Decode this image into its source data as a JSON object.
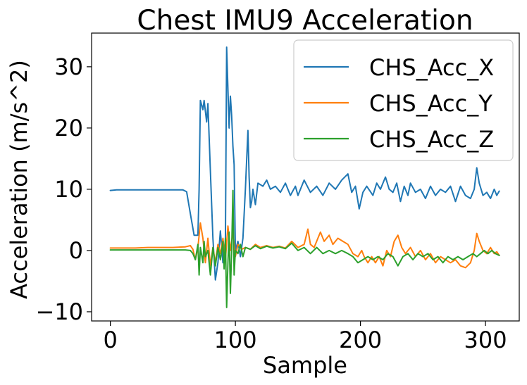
{
  "chart_data": {
    "type": "line",
    "title": "Chest IMU9 Acceleration",
    "xlabel": "Sample",
    "ylabel": "Acceleration (m/s^2)",
    "xlim": [
      -15,
      327
    ],
    "ylim": [
      -11.5,
      35.5
    ],
    "xticks": [
      0,
      100,
      200,
      300
    ],
    "yticks": [
      -10,
      0,
      10,
      20,
      30
    ],
    "xtick_labels": [
      "0",
      "100",
      "200",
      "300"
    ],
    "ytick_labels": [
      "−10",
      "0",
      "10",
      "20",
      "30"
    ],
    "legend_position": "top-right",
    "series": [
      {
        "name": "CHS_Acc_X",
        "color": "#1f77b4",
        "points": [
          [
            0,
            9.8
          ],
          [
            5,
            9.9
          ],
          [
            10,
            9.9
          ],
          [
            20,
            9.9
          ],
          [
            30,
            9.9
          ],
          [
            40,
            9.9
          ],
          [
            50,
            9.9
          ],
          [
            58,
            9.9
          ],
          [
            61,
            9.6
          ],
          [
            64,
            6.0
          ],
          [
            67,
            2.5
          ],
          [
            70,
            2.5
          ],
          [
            71,
            10.0
          ],
          [
            72,
            24.5
          ],
          [
            74,
            23.0
          ],
          [
            75,
            24.5
          ],
          [
            77,
            21.0
          ],
          [
            78,
            24.0
          ],
          [
            80,
            13.0
          ],
          [
            82,
            2.0
          ],
          [
            84,
            -4.8
          ],
          [
            86,
            -2.0
          ],
          [
            88,
            3.2
          ],
          [
            90,
            -2.0
          ],
          [
            92,
            1.0
          ],
          [
            93,
            33.2
          ],
          [
            95,
            20.0
          ],
          [
            96,
            25.2
          ],
          [
            97,
            22.0
          ],
          [
            98,
            17.0
          ],
          [
            99,
            14.0
          ],
          [
            100,
            0.0
          ],
          [
            102,
            1.5
          ],
          [
            104,
            -1.0
          ],
          [
            106,
            2.0
          ],
          [
            108,
            10.0
          ],
          [
            110,
            19.6
          ],
          [
            111,
            12.0
          ],
          [
            112,
            7.0
          ],
          [
            113,
            8.0
          ],
          [
            114,
            10.0
          ],
          [
            116,
            7.5
          ],
          [
            118,
            11.0
          ],
          [
            122,
            10.5
          ],
          [
            125,
            11.5
          ],
          [
            128,
            10.0
          ],
          [
            132,
            10.5
          ],
          [
            136,
            9.5
          ],
          [
            140,
            11.0
          ],
          [
            144,
            9.0
          ],
          [
            148,
            10.5
          ],
          [
            150,
            9.0
          ],
          [
            155,
            11.5
          ],
          [
            160,
            9.5
          ],
          [
            165,
            10.5
          ],
          [
            170,
            9.0
          ],
          [
            175,
            11.0
          ],
          [
            180,
            10.0
          ],
          [
            185,
            11.5
          ],
          [
            190,
            12.5
          ],
          [
            193,
            9.5
          ],
          [
            196,
            10.5
          ],
          [
            199,
            6.8
          ],
          [
            202,
            9.5
          ],
          [
            205,
            10.5
          ],
          [
            210,
            9.0
          ],
          [
            213,
            11.0
          ],
          [
            216,
            10.0
          ],
          [
            220,
            12.0
          ],
          [
            223,
            10.0
          ],
          [
            226,
            9.5
          ],
          [
            229,
            11.0
          ],
          [
            232,
            8.0
          ],
          [
            235,
            10.5
          ],
          [
            238,
            9.0
          ],
          [
            240,
            11.0
          ],
          [
            244,
            9.5
          ],
          [
            248,
            10.0
          ],
          [
            252,
            8.5
          ],
          [
            256,
            10.5
          ],
          [
            260,
            9.0
          ],
          [
            264,
            10.0
          ],
          [
            268,
            9.5
          ],
          [
            272,
            10.5
          ],
          [
            276,
            8.0
          ],
          [
            280,
            10.5
          ],
          [
            284,
            9.0
          ],
          [
            288,
            8.5
          ],
          [
            291,
            10.0
          ],
          [
            293,
            13.5
          ],
          [
            295,
            11.0
          ],
          [
            298,
            9.0
          ],
          [
            301,
            9.5
          ],
          [
            304,
            8.5
          ],
          [
            307,
            10.0
          ],
          [
            309,
            9.0
          ],
          [
            311,
            9.7
          ]
        ]
      },
      {
        "name": "CHS_Acc_Y",
        "color": "#ff7f0e",
        "points": [
          [
            0,
            0.4
          ],
          [
            10,
            0.4
          ],
          [
            20,
            0.4
          ],
          [
            30,
            0.5
          ],
          [
            40,
            0.5
          ],
          [
            50,
            0.5
          ],
          [
            60,
            0.6
          ],
          [
            64,
            0.8
          ],
          [
            66,
            0.2
          ],
          [
            68,
            -1.5
          ],
          [
            70,
            0.5
          ],
          [
            72,
            4.5
          ],
          [
            74,
            2.0
          ],
          [
            76,
            -2.0
          ],
          [
            78,
            2.0
          ],
          [
            80,
            -2.5
          ],
          [
            82,
            0.5
          ],
          [
            84,
            -2.0
          ],
          [
            86,
            1.0
          ],
          [
            88,
            -0.5
          ],
          [
            90,
            2.0
          ],
          [
            92,
            -1.5
          ],
          [
            94,
            4.0
          ],
          [
            96,
            0.0
          ],
          [
            98,
            3.0
          ],
          [
            100,
            -1.0
          ],
          [
            102,
            1.0
          ],
          [
            105,
            0.2
          ],
          [
            108,
            0.5
          ],
          [
            112,
            0.2
          ],
          [
            116,
            1.0
          ],
          [
            120,
            0.5
          ],
          [
            125,
            0.8
          ],
          [
            130,
            0.5
          ],
          [
            135,
            0.7
          ],
          [
            140,
            0.4
          ],
          [
            145,
            1.5
          ],
          [
            150,
            0.5
          ],
          [
            155,
            1.0
          ],
          [
            158,
            3.5
          ],
          [
            160,
            1.0
          ],
          [
            163,
            0.5
          ],
          [
            166,
            2.0
          ],
          [
            168,
            3.0
          ],
          [
            171,
            1.5
          ],
          [
            175,
            2.5
          ],
          [
            178,
            1.0
          ],
          [
            182,
            2.0
          ],
          [
            186,
            1.5
          ],
          [
            190,
            1.0
          ],
          [
            194,
            -0.5
          ],
          [
            198,
            -1.0
          ],
          [
            201,
            0.0
          ],
          [
            203,
            -1.0
          ],
          [
            206,
            -2.0
          ],
          [
            209,
            -1.0
          ],
          [
            212,
            -2.0
          ],
          [
            215,
            -1.0
          ],
          [
            218,
            -2.5
          ],
          [
            221,
            0.0
          ],
          [
            224,
            -1.0
          ],
          [
            227,
            1.5
          ],
          [
            230,
            2.5
          ],
          [
            233,
            0.5
          ],
          [
            236,
            -0.5
          ],
          [
            240,
            0.5
          ],
          [
            244,
            -1.0
          ],
          [
            248,
            0.0
          ],
          [
            252,
            -1.5
          ],
          [
            256,
            -0.5
          ],
          [
            260,
            -2.0
          ],
          [
            264,
            -1.0
          ],
          [
            268,
            -1.5
          ],
          [
            272,
            -2.0
          ],
          [
            276,
            -1.5
          ],
          [
            280,
            -2.5
          ],
          [
            284,
            -2.8
          ],
          [
            288,
            -2.0
          ],
          [
            291,
            0.0
          ],
          [
            293,
            2.8
          ],
          [
            295,
            1.5
          ],
          [
            298,
            0.0
          ],
          [
            301,
            -0.5
          ],
          [
            304,
            0.5
          ],
          [
            307,
            -0.5
          ],
          [
            309,
            -0.2
          ],
          [
            311,
            -0.8
          ]
        ]
      },
      {
        "name": "CHS_Acc_Z",
        "color": "#2ca02c",
        "points": [
          [
            0,
            0.1
          ],
          [
            10,
            0.1
          ],
          [
            20,
            0.1
          ],
          [
            30,
            0.1
          ],
          [
            40,
            0.1
          ],
          [
            50,
            0.1
          ],
          [
            60,
            0.1
          ],
          [
            64,
            0.0
          ],
          [
            66,
            -0.5
          ],
          [
            68,
            -1.5
          ],
          [
            70,
            1.0
          ],
          [
            71,
            -4.0
          ],
          [
            72,
            0.5
          ],
          [
            74,
            -2.0
          ],
          [
            75,
            1.5
          ],
          [
            76,
            -1.0
          ],
          [
            78,
            0.0
          ],
          [
            80,
            -4.0
          ],
          [
            82,
            0.5
          ],
          [
            84,
            -2.5
          ],
          [
            86,
            0.5
          ],
          [
            88,
            -1.5
          ],
          [
            90,
            1.5
          ],
          [
            91,
            -3.0
          ],
          [
            92,
            2.0
          ],
          [
            93,
            -9.3
          ],
          [
            94,
            -2.0
          ],
          [
            95,
            3.0
          ],
          [
            96,
            -7.0
          ],
          [
            97,
            0.0
          ],
          [
            98,
            9.8
          ],
          [
            99,
            -4.0
          ],
          [
            100,
            0.0
          ],
          [
            102,
            -0.5
          ],
          [
            104,
            1.0
          ],
          [
            106,
            -1.0
          ],
          [
            108,
            0.5
          ],
          [
            112,
            0.2
          ],
          [
            116,
            0.8
          ],
          [
            120,
            0.3
          ],
          [
            125,
            0.7
          ],
          [
            130,
            0.4
          ],
          [
            135,
            0.6
          ],
          [
            140,
            0.3
          ],
          [
            145,
            1.2
          ],
          [
            150,
            0.0
          ],
          [
            155,
            0.5
          ],
          [
            160,
            -0.5
          ],
          [
            165,
            0.5
          ],
          [
            170,
            -0.5
          ],
          [
            175,
            0.0
          ],
          [
            180,
            -0.5
          ],
          [
            185,
            0.0
          ],
          [
            190,
            -0.5
          ],
          [
            194,
            -1.0
          ],
          [
            198,
            -2.0
          ],
          [
            202,
            -1.5
          ],
          [
            206,
            -1.0
          ],
          [
            210,
            -1.5
          ],
          [
            214,
            -1.0
          ],
          [
            218,
            -1.5
          ],
          [
            222,
            -0.5
          ],
          [
            226,
            -1.0
          ],
          [
            230,
            -2.5
          ],
          [
            234,
            -1.0
          ],
          [
            238,
            -0.5
          ],
          [
            242,
            -1.5
          ],
          [
            246,
            -0.5
          ],
          [
            250,
            -1.0
          ],
          [
            254,
            -0.5
          ],
          [
            258,
            -1.5
          ],
          [
            262,
            -1.0
          ],
          [
            266,
            -2.0
          ],
          [
            270,
            -1.0
          ],
          [
            274,
            -1.5
          ],
          [
            278,
            -1.0
          ],
          [
            282,
            -1.5
          ],
          [
            286,
            -1.0
          ],
          [
            290,
            -0.5
          ],
          [
            293,
            -1.0
          ],
          [
            296,
            -0.5
          ],
          [
            299,
            0.0
          ],
          [
            302,
            -0.5
          ],
          [
            305,
            0.0
          ],
          [
            308,
            -0.5
          ],
          [
            311,
            -0.8
          ]
        ]
      }
    ]
  }
}
